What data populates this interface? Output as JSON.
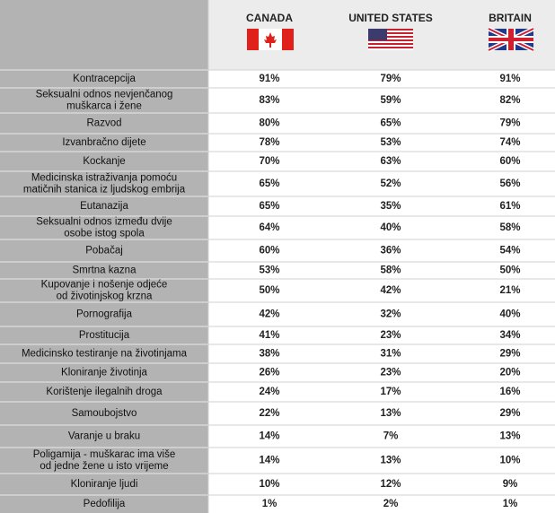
{
  "header": {
    "columns": [
      "CANADA",
      "UNITED STATES",
      "BRITAIN"
    ]
  },
  "table": {
    "rows": [
      {
        "label": [
          "Kontracepcija"
        ],
        "values": [
          "91%",
          "79%",
          "91%"
        ]
      },
      {
        "label": [
          "Seksualni odnos nevjenčanog",
          "muškarca i žene"
        ],
        "values": [
          "83%",
          "59%",
          "82%"
        ]
      },
      {
        "label": [
          "Razvod"
        ],
        "values": [
          "80%",
          "65%",
          "79%"
        ]
      },
      {
        "label": [
          "Izvanbračno dijete"
        ],
        "values": [
          "78%",
          "53%",
          "74%"
        ]
      },
      {
        "label": [
          "Kockanje"
        ],
        "values": [
          "70%",
          "63%",
          "60%"
        ]
      },
      {
        "label": [
          "Medicinska istraživanja pomoću",
          "matičnih stanica iz ljudskog embrija"
        ],
        "values": [
          "65%",
          "52%",
          "56%"
        ]
      },
      {
        "label": [
          "Eutanazija"
        ],
        "values": [
          "65%",
          "35%",
          "61%"
        ]
      },
      {
        "label": [
          "Seksualni odnos između dvije",
          "osobe istog spola"
        ],
        "values": [
          "64%",
          "40%",
          "58%"
        ]
      },
      {
        "label": [
          "Pobačaj"
        ],
        "values": [
          "60%",
          "36%",
          "54%"
        ]
      },
      {
        "label": [
          "Smrtna kazna"
        ],
        "values": [
          "53%",
          "58%",
          "50%"
        ]
      },
      {
        "label": [
          "Kupovanje i nošenje odjeće",
          "od životinjskog krzna"
        ],
        "values": [
          "50%",
          "42%",
          "21%"
        ]
      },
      {
        "label": [
          "Pornografija"
        ],
        "values": [
          "42%",
          "32%",
          "40%"
        ]
      },
      {
        "label": [
          "Prostitucija"
        ],
        "values": [
          "41%",
          "23%",
          "34%"
        ]
      },
      {
        "label": [
          "Medicinsko testiranje na životinjama"
        ],
        "values": [
          "38%",
          "31%",
          "29%"
        ]
      },
      {
        "label": [
          "Kloniranje životinja"
        ],
        "values": [
          "26%",
          "23%",
          "20%"
        ]
      },
      {
        "label": [
          "Korištenje ilegalnih droga"
        ],
        "values": [
          "24%",
          "17%",
          "16%"
        ]
      },
      {
        "label": [
          "Samoubojstvo"
        ],
        "values": [
          "22%",
          "13%",
          "29%"
        ]
      },
      {
        "label": [
          "Varanje u braku"
        ],
        "values": [
          "14%",
          "7%",
          "13%"
        ]
      },
      {
        "label": [
          "Poligamija - muškarac ima više",
          "od jedne žene u isto vrijeme"
        ],
        "values": [
          "14%",
          "13%",
          "10%"
        ]
      },
      {
        "label": [
          "Kloniranje ljudi"
        ],
        "values": [
          "10%",
          "12%",
          "9%"
        ]
      },
      {
        "label": [
          "Pedofilija"
        ],
        "values": [
          "1%",
          "2%",
          "1%"
        ]
      }
    ]
  }
}
